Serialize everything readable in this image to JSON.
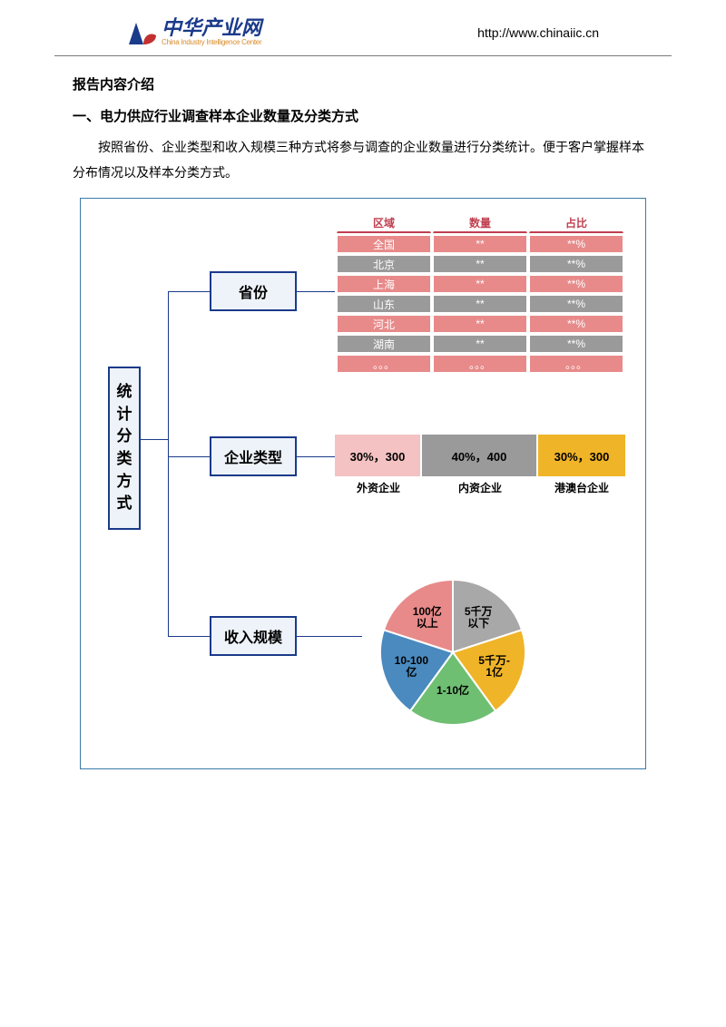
{
  "header": {
    "logo_main": "中华产业网",
    "logo_sub": "China Industry Intelligence Center",
    "url": "http://www.chinaiic.cn"
  },
  "section_intro": "报告内容介绍",
  "section_heading": "一、电力供应行业调查样本企业数量及分类方式",
  "body": "按照省份、企业类型和收入规模三种方式将参与调查的企业数量进行分类统计。便于客户掌握样本分布情况以及样本分类方式。",
  "root_label": "统计分类方式",
  "branches": {
    "province": "省份",
    "type": "企业类型",
    "income": "收入规模"
  },
  "province_table": {
    "headers": [
      "区域",
      "数量",
      "占比"
    ],
    "rows": [
      {
        "cells": [
          "全国",
          "**",
          "**%"
        ],
        "bg": "#e88a8a"
      },
      {
        "cells": [
          "北京",
          "**",
          "**%"
        ],
        "bg": "#9a9a9a"
      },
      {
        "cells": [
          "上海",
          "**",
          "**%"
        ],
        "bg": "#e88a8a"
      },
      {
        "cells": [
          "山东",
          "**",
          "**%"
        ],
        "bg": "#9a9a9a"
      },
      {
        "cells": [
          "河北",
          "**",
          "**%"
        ],
        "bg": "#e88a8a"
      },
      {
        "cells": [
          "湖南",
          "**",
          "**%"
        ],
        "bg": "#9a9a9a"
      },
      {
        "cells": [
          "。。。",
          "。。。",
          "。。。"
        ],
        "bg": "#e88a8a"
      }
    ],
    "header_color": "#c04050"
  },
  "type_chart": {
    "type": "bar",
    "segments": [
      {
        "label": "30%，300",
        "caption": "外资企业",
        "width_pct": 30,
        "bg": "#f4c2c2",
        "text": "#000000"
      },
      {
        "label": "40%，400",
        "caption": "内资企业",
        "width_pct": 40,
        "bg": "#9a9a9a",
        "text": "#000000"
      },
      {
        "label": "30%，300",
        "caption": "港澳台企业",
        "width_pct": 30,
        "bg": "#f0b428",
        "text": "#000000"
      }
    ]
  },
  "income_pie": {
    "type": "pie",
    "background_color": "#ffffff",
    "slices": [
      {
        "label": "5千万\n以下",
        "value": 20,
        "color": "#a8a8a8"
      },
      {
        "label": "5千万-\n1亿",
        "value": 20,
        "color": "#f0b428"
      },
      {
        "label": "1-10亿",
        "value": 20,
        "color": "#6fbf73"
      },
      {
        "label": "10-100\n亿",
        "value": 20,
        "color": "#4a8abf"
      },
      {
        "label": "100亿\n以上",
        "value": 20,
        "color": "#e88a8a"
      }
    ],
    "label_fontsize": 12,
    "label_fontweight": "bold",
    "stroke": "#ffffff",
    "stroke_width": 2
  },
  "colors": {
    "box_border": "#1a3a8a",
    "box_bg": "#eef3f9",
    "container_border": "#3a7aa8"
  }
}
